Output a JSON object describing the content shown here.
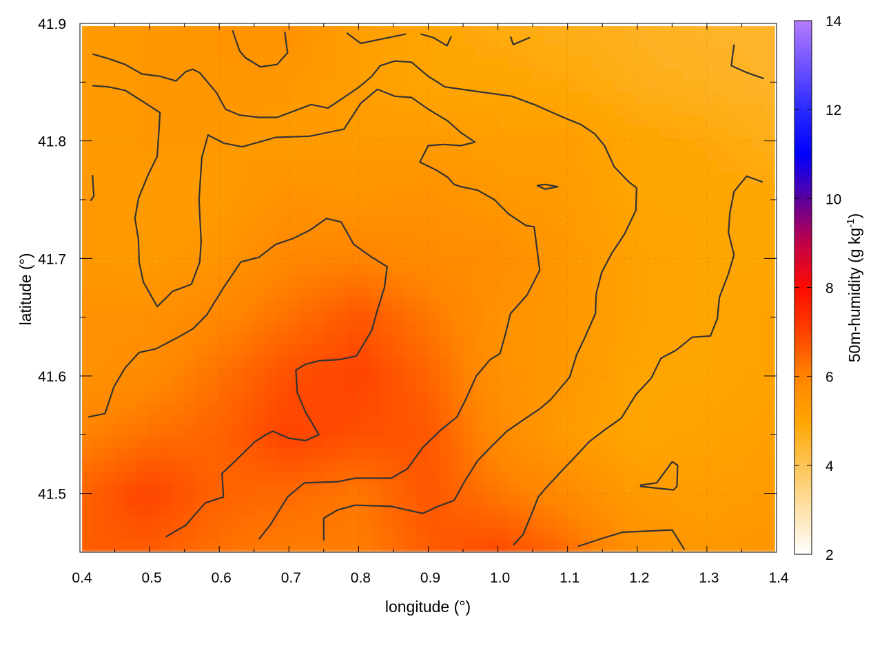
{
  "chart_data": {
    "type": "heatmap",
    "xlabel": "longitude (°)",
    "ylabel": "latitude (°)",
    "colorbar_label": "50m-humidity (g kg",
    "colorbar_label_sup": "-1",
    "colorbar_label_end": ")",
    "xlim": [
      0.4,
      1.4
    ],
    "ylim": [
      41.45,
      41.9
    ],
    "zlim": [
      2,
      14
    ],
    "grid": true,
    "x_ticks": [
      "0.4",
      "0.5",
      "0.6",
      "0.7",
      "0.8",
      "0.9",
      "1.0",
      "1.1",
      "1.2",
      "1.3",
      "1.4"
    ],
    "x_tick_values": [
      0.4,
      0.5,
      0.6,
      0.7,
      0.8,
      0.9,
      1.0,
      1.1,
      1.2,
      1.3,
      1.4
    ],
    "y_ticks": [
      "41.5",
      "41.6",
      "41.7",
      "41.8",
      "41.9"
    ],
    "y_tick_values": [
      41.5,
      41.6,
      41.7,
      41.8,
      41.9
    ],
    "colorbar_ticks": [
      "2",
      "4",
      "6",
      "8",
      "10",
      "12",
      "14"
    ],
    "colorbar_tick_values": [
      2,
      4,
      6,
      8,
      10,
      12,
      14
    ],
    "palette": [
      {
        "z": 2,
        "color": "#ffffff"
      },
      {
        "z": 4,
        "color": "#fcc455"
      },
      {
        "z": 5,
        "color": "#ffa500"
      },
      {
        "z": 6,
        "color": "#ff8400"
      },
      {
        "z": 7,
        "color": "#ff4200"
      },
      {
        "z": 8,
        "color": "#ff0a00"
      },
      {
        "z": 9,
        "color": "#c00048"
      },
      {
        "z": 10,
        "color": "#5a00a0"
      },
      {
        "z": 11,
        "color": "#0000ff"
      },
      {
        "z": 12,
        "color": "#2a2aff"
      },
      {
        "z": 14,
        "color": "#b47cff"
      }
    ],
    "contour_color": "#333333",
    "grid_lon": [
      0.4,
      0.5,
      0.6,
      0.7,
      0.8,
      0.9,
      1.0,
      1.1,
      1.2,
      1.3,
      1.4
    ],
    "grid_lat": [
      41.9,
      41.85,
      41.8,
      41.75,
      41.7,
      41.65,
      41.6,
      41.55,
      41.5,
      41.45
    ],
    "z": [
      [
        5.3,
        5.4,
        5.5,
        5.6,
        5.2,
        5.0,
        4.8,
        4.7,
        4.6,
        4.5,
        4.5
      ],
      [
        5.3,
        5.4,
        5.5,
        5.4,
        5.2,
        5.0,
        5.0,
        4.9,
        4.7,
        4.6,
        4.5
      ],
      [
        5.3,
        5.4,
        5.4,
        5.3,
        5.3,
        5.3,
        5.2,
        5.2,
        5.0,
        4.9,
        4.7
      ],
      [
        5.4,
        5.3,
        5.3,
        5.6,
        5.5,
        5.6,
        5.4,
        5.3,
        5.0,
        5.0,
        5.0
      ],
      [
        5.4,
        5.3,
        5.5,
        5.9,
        6.0,
        5.8,
        5.7,
        5.4,
        5.1,
        5.0,
        5.0
      ],
      [
        5.6,
        5.6,
        5.9,
        6.3,
        6.7,
        6.2,
        5.6,
        5.4,
        5.1,
        5.0,
        5.1
      ],
      [
        5.6,
        5.8,
        6.3,
        6.8,
        7.0,
        6.5,
        5.6,
        5.4,
        5.0,
        5.0,
        5.1
      ],
      [
        6.0,
        6.3,
        6.5,
        7.0,
        6.8,
        6.7,
        5.8,
        5.3,
        5.0,
        5.1,
        5.2
      ],
      [
        6.5,
        7.0,
        6.5,
        6.4,
        6.2,
        6.7,
        6.2,
        5.8,
        5.3,
        5.2,
        5.3
      ],
      [
        6.6,
        6.6,
        6.3,
        6.1,
        6.1,
        6.6,
        6.9,
        6.4,
        5.6,
        5.4,
        5.5
      ]
    ],
    "contours": [
      {
        "lon": [
          0.418,
          0.441,
          0.465,
          0.489,
          0.515,
          0.538,
          0.552,
          0.562,
          0.572,
          0.596,
          0.609,
          0.629,
          0.657,
          0.683,
          0.732,
          0.756,
          0.779,
          0.801,
          0.819,
          0.831,
          0.852,
          0.876,
          0.9,
          0.924,
          0.971,
          1.02,
          1.052,
          1.094,
          1.119,
          1.139,
          1.153,
          1.167,
          1.188,
          1.199,
          1.198,
          1.19,
          1.182,
          1.163,
          1.149,
          1.141,
          1.14,
          1.125,
          1.113,
          1.103,
          1.076,
          1.06,
          1.04,
          1.013,
          0.989,
          0.971,
          0.953,
          0.937,
          0.914,
          0.892,
          0.847,
          0.795,
          0.77,
          0.75,
          0.75
        ],
        "lat": [
          41.874,
          41.87,
          41.865,
          41.857,
          41.855,
          41.851,
          41.859,
          41.861,
          41.858,
          41.841,
          41.827,
          41.822,
          41.82,
          41.82,
          41.831,
          41.828,
          41.837,
          41.846,
          41.855,
          41.864,
          41.868,
          41.867,
          41.855,
          41.846,
          41.842,
          41.838,
          41.831,
          41.82,
          41.814,
          41.806,
          41.796,
          41.778,
          41.765,
          41.76,
          41.741,
          41.731,
          41.721,
          41.704,
          41.688,
          41.67,
          41.653,
          41.633,
          41.618,
          41.599,
          41.58,
          41.572,
          41.564,
          41.553,
          41.539,
          41.528,
          41.511,
          41.494,
          41.489,
          41.483,
          41.489,
          41.49,
          41.486,
          41.479,
          41.46
        ]
      },
      {
        "lon": [
          0.418,
          0.441,
          0.465,
          0.489,
          0.515,
          0.513,
          0.511,
          0.497,
          0.484,
          0.479,
          0.484,
          0.485,
          0.491,
          0.511,
          0.533,
          0.56,
          0.572,
          0.574,
          0.571,
          0.575,
          0.584,
          0.607,
          0.633,
          0.681,
          0.73,
          0.779,
          0.803,
          0.827,
          0.852,
          0.876,
          0.9,
          0.928,
          0.947,
          0.967,
          0.947,
          0.922,
          0.9,
          0.888,
          0.912,
          0.928,
          0.937,
          0.947,
          0.971,
          0.995,
          1.015,
          1.04,
          1.052,
          1.06,
          1.042,
          1.018,
          1.011,
          1.003,
          0.989,
          0.969,
          0.953,
          0.941,
          0.918,
          0.892,
          0.87,
          0.847,
          0.795,
          0.77,
          0.722,
          0.698,
          0.673,
          0.657
        ],
        "lat": [
          41.847,
          41.846,
          41.843,
          41.834,
          41.824,
          41.805,
          41.787,
          41.77,
          41.751,
          41.734,
          41.716,
          41.697,
          41.68,
          41.659,
          41.672,
          41.678,
          41.697,
          41.714,
          41.75,
          41.786,
          41.805,
          41.798,
          41.795,
          41.803,
          41.804,
          41.81,
          41.832,
          41.844,
          41.838,
          41.837,
          41.827,
          41.817,
          41.807,
          41.799,
          41.796,
          41.797,
          41.796,
          41.782,
          41.775,
          41.769,
          41.763,
          41.761,
          41.758,
          41.75,
          41.738,
          41.728,
          41.727,
          41.69,
          41.669,
          41.653,
          41.636,
          41.619,
          41.614,
          41.6,
          41.579,
          41.565,
          41.554,
          41.539,
          41.521,
          41.513,
          41.513,
          41.51,
          41.509,
          41.497,
          41.473,
          41.461
        ]
      },
      {
        "lon": [
          0.412,
          0.436,
          0.449,
          0.465,
          0.485,
          0.509,
          0.538,
          0.562,
          0.582,
          0.606,
          0.631,
          0.657,
          0.681,
          0.706,
          0.73,
          0.754,
          0.775,
          0.793,
          0.819,
          0.841,
          0.837,
          0.827,
          0.819,
          0.797,
          0.773,
          0.744,
          0.724,
          0.71,
          0.712,
          0.724,
          0.743,
          0.724,
          0.7,
          0.677,
          0.667,
          0.651,
          0.627,
          0.604,
          0.606,
          0.58,
          0.562,
          0.552,
          0.523
        ],
        "lat": [
          41.565,
          41.568,
          41.591,
          41.607,
          41.62,
          41.623,
          41.632,
          41.64,
          41.652,
          41.675,
          41.697,
          41.701,
          41.712,
          41.717,
          41.724,
          41.734,
          41.731,
          41.712,
          41.701,
          41.693,
          41.675,
          41.656,
          41.639,
          41.617,
          41.614,
          41.613,
          41.61,
          41.605,
          41.586,
          41.569,
          41.55,
          41.545,
          41.547,
          41.553,
          41.55,
          41.544,
          41.53,
          41.517,
          41.497,
          41.492,
          41.48,
          41.473,
          41.463
        ]
      },
      {
        "lon": [
          1.38,
          1.357,
          1.339,
          1.333,
          1.331,
          1.339,
          1.331,
          1.318,
          1.315,
          1.305,
          1.279,
          1.256,
          1.234,
          1.22,
          1.198,
          1.177,
          1.153,
          1.131,
          1.109,
          1.088,
          1.068,
          1.058,
          1.05,
          1.036,
          1.022
        ],
        "lat": [
          41.765,
          41.77,
          41.757,
          41.739,
          41.722,
          41.703,
          41.687,
          41.667,
          41.649,
          41.634,
          41.633,
          41.622,
          41.615,
          41.598,
          41.584,
          41.564,
          41.554,
          41.544,
          41.53,
          41.517,
          41.504,
          41.497,
          41.485,
          41.465,
          41.456
        ]
      },
      {
        "lon": [
          0.619,
          0.629,
          0.637,
          0.659,
          0.683,
          0.698,
          0.694
        ],
        "lat": [
          41.894,
          41.877,
          41.871,
          41.863,
          41.865,
          41.875,
          41.893
        ]
      },
      {
        "lon": [
          0.783,
          0.803,
          0.827,
          0.868
        ],
        "lat": [
          41.892,
          41.883,
          41.886,
          41.891
        ]
      },
      {
        "lon": [
          0.889,
          0.907,
          0.927,
          0.933
        ],
        "lat": [
          41.891,
          41.888,
          41.881,
          41.889
        ]
      },
      {
        "lon": [
          1.018,
          1.022,
          1.046
        ],
        "lat": [
          41.889,
          41.882,
          41.888
        ]
      },
      {
        "lon": [
          1.339,
          1.335,
          1.358,
          1.382
        ],
        "lat": [
          41.882,
          41.864,
          41.858,
          41.853
        ]
      },
      {
        "lon": [
          1.056,
          1.068,
          1.086,
          1.068,
          1.056
        ],
        "lat": [
          41.762,
          41.763,
          41.761,
          41.759,
          41.762
        ]
      },
      {
        "lon": [
          0.418,
          0.42,
          0.415
        ],
        "lat": [
          41.771,
          41.753,
          41.749
        ]
      },
      {
        "lon": [
          1.204,
          1.228,
          1.25,
          1.258,
          1.257,
          1.252,
          1.204
        ],
        "lat": [
          41.507,
          41.509,
          41.527,
          41.524,
          41.506,
          41.503,
          41.506
        ]
      },
      {
        "lon": [
          1.115,
          1.151,
          1.179,
          1.25,
          1.268
        ],
        "lat": [
          41.455,
          41.462,
          41.467,
          41.469,
          41.452
        ]
      }
    ]
  }
}
